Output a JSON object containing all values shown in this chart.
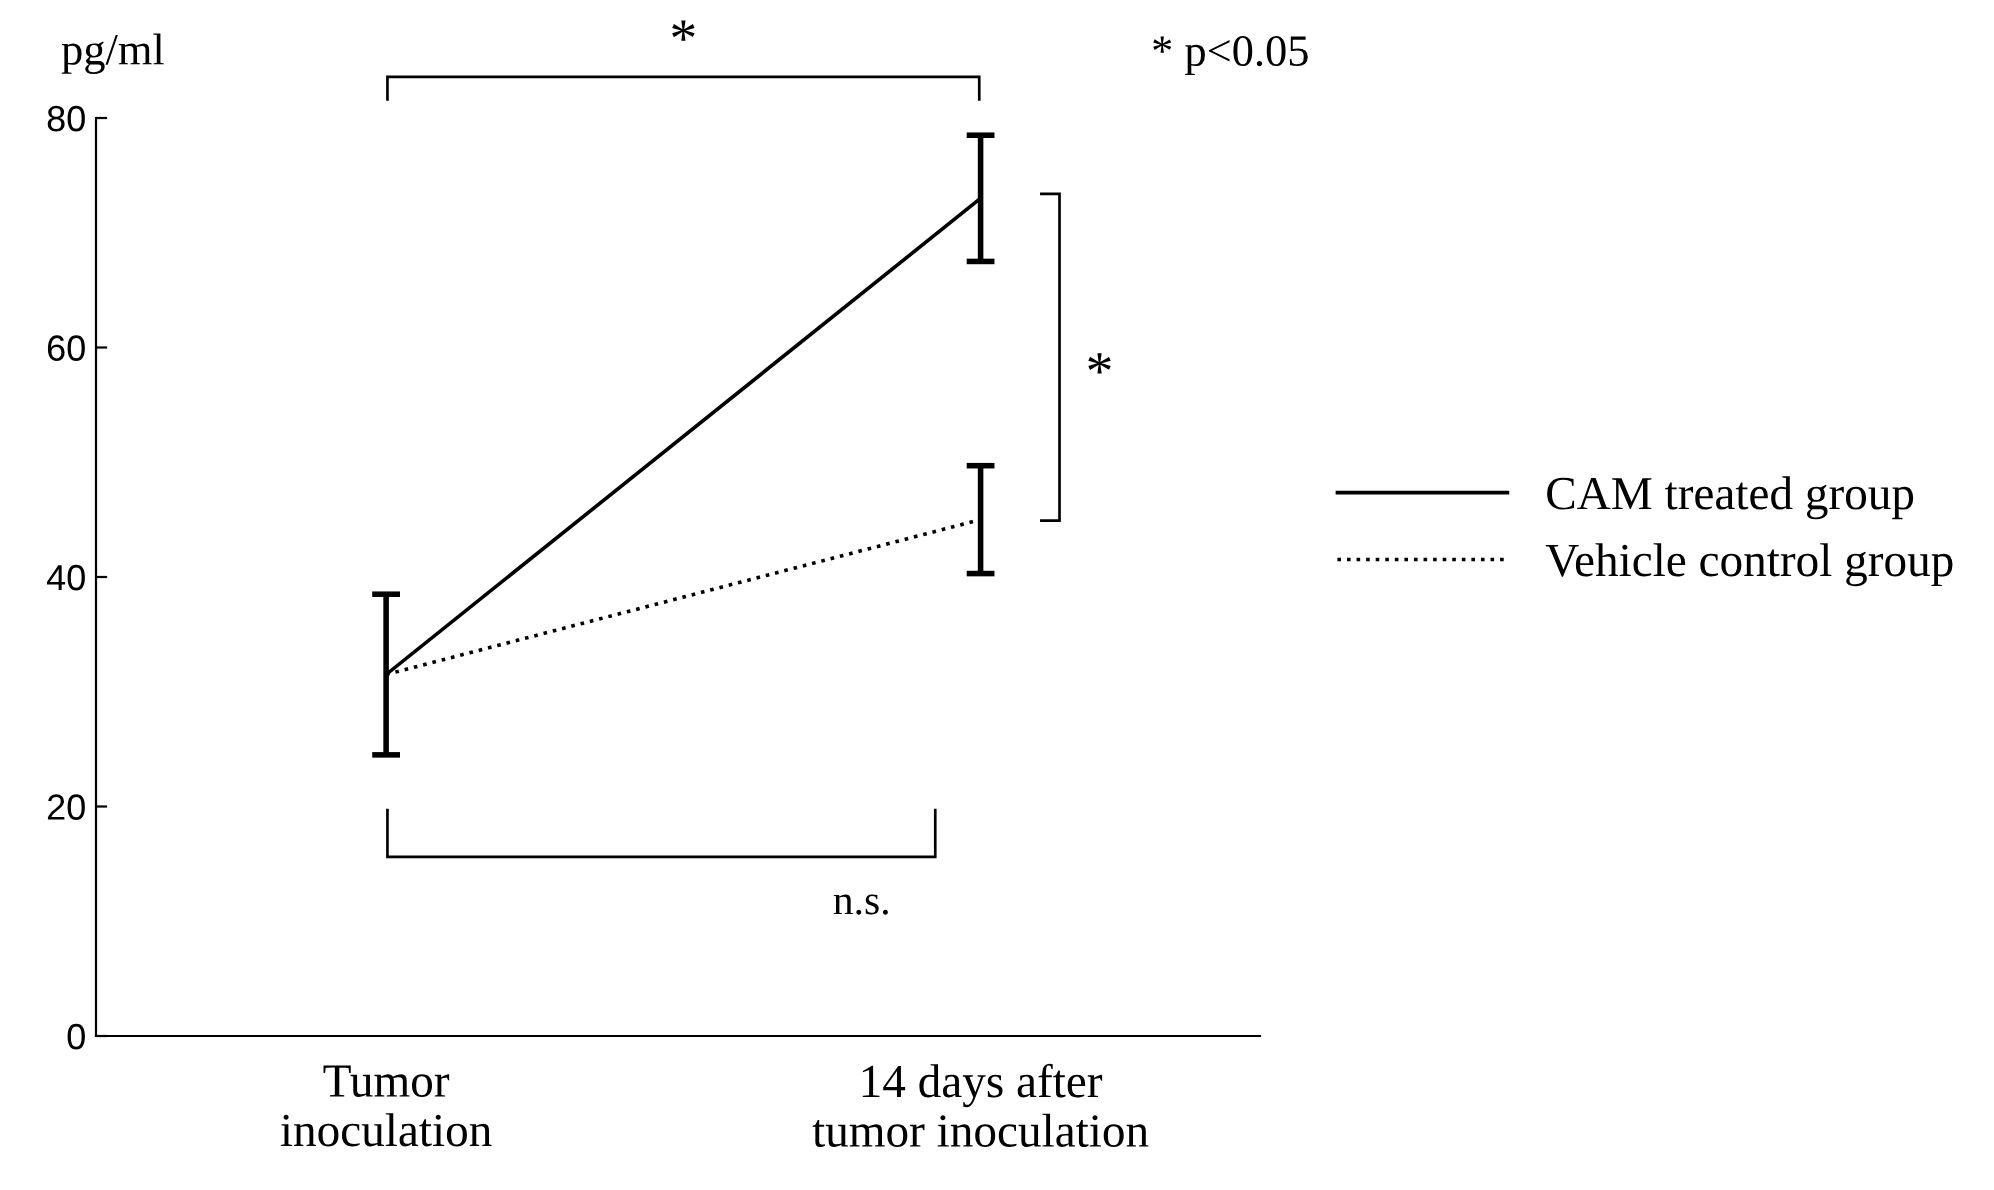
{
  "chart_data": {
    "type": "line",
    "ylabel": "pg/ml",
    "categories": [
      "Tumor\ninoculation",
      "14 days after\ntumor inoculation"
    ],
    "series": [
      {
        "name": "CAM treated group",
        "color": "#000000",
        "line_style": "solid",
        "values": [
          31.5,
          73
        ],
        "errors": [
          7,
          5.5
        ]
      },
      {
        "name": "Vehicle control group",
        "color": "#000000",
        "line_style": "dotted",
        "values": [
          31.5,
          45
        ],
        "errors": [
          null,
          4.7
        ]
      }
    ],
    "ylim": [
      0,
      80
    ],
    "yticks": [
      0,
      20,
      40,
      60,
      80
    ],
    "grid": false,
    "legend": "right",
    "marker": "none",
    "annotations": [
      "*",
      "*",
      "n.s.",
      "* p<0.05"
    ]
  }
}
